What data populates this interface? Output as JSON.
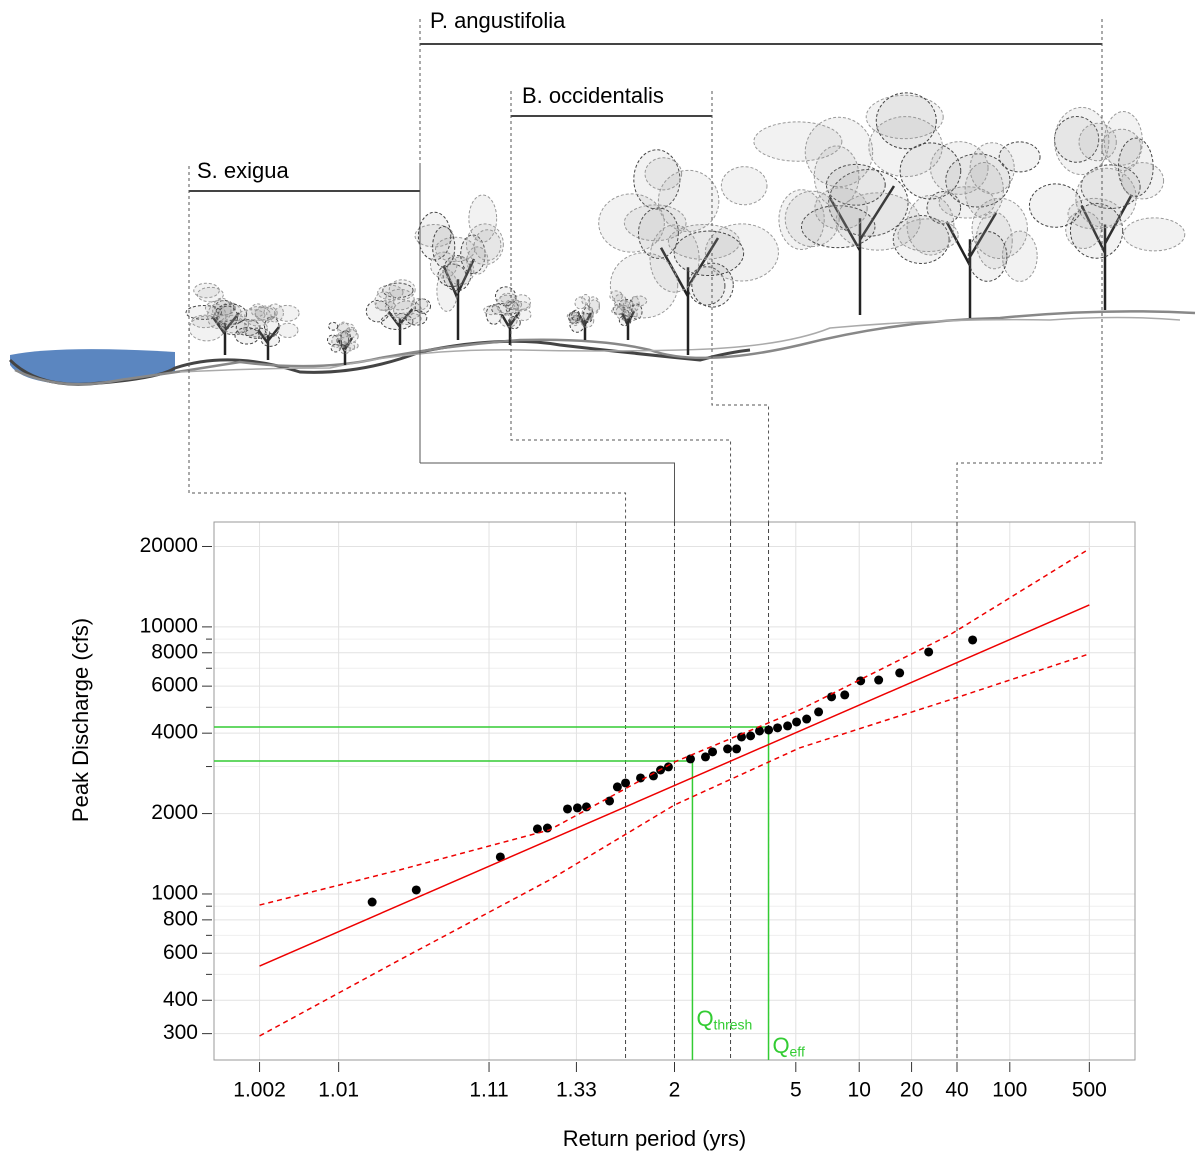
{
  "chart_data": {
    "type": "scatter",
    "xlabel": "Return period (yrs)",
    "ylabel": "Peak Discharge (cfs)",
    "xscale": "normal-probability",
    "yscale": "log",
    "xlim": [
      1.0007,
      1430
    ],
    "ylim": [
      239,
      24700
    ],
    "xticks": [
      1.002,
      1.01,
      1.11,
      1.33,
      2,
      5,
      10,
      20,
      40,
      100,
      500
    ],
    "yticks": [
      300,
      400,
      600,
      800,
      1000,
      2000,
      4000,
      6000,
      8000,
      10000,
      20000
    ],
    "yminor": [
      500,
      700,
      900,
      3000,
      5000,
      7000,
      9000
    ],
    "grid": true,
    "series": [
      {
        "type": "scatter",
        "color": "#000000",
        "x": [
          1.0183,
          1.038,
          1.128,
          1.206,
          1.233,
          1.297,
          1.334,
          1.371,
          1.484,
          1.529,
          1.58,
          1.686,
          1.792,
          1.857,
          1.935,
          2.194,
          2.41,
          2.526,
          2.806,
          3.0,
          3.115,
          3.347,
          3.602,
          3.893,
          4.214,
          4.623,
          5.038,
          5.568,
          6.3,
          7.25,
          8.42,
          10.18,
          12.77,
          16.92,
          25.7,
          51.8
        ],
        "values": [
          933,
          1035,
          1376,
          1752,
          1766,
          2081,
          2100,
          2118,
          2230,
          2517,
          2604,
          2719,
          2767,
          2912,
          2990,
          3204,
          3259,
          3405,
          3492,
          3492,
          3871,
          3908,
          4077,
          4113,
          4188,
          4259,
          4406,
          4519,
          4805,
          5470,
          5562,
          6279,
          6325,
          6724,
          8055,
          8933
        ]
      },
      {
        "type": "line",
        "color": "#ee0000",
        "dashed": false,
        "x": [
          1.002,
          500
        ],
        "values": [
          537,
          12080
        ]
      },
      {
        "type": "line",
        "color": "#ee0000",
        "dashed": true,
        "x": [
          1.002,
          1.029,
          1.239,
          2,
          5.19,
          35.6,
          500
        ],
        "values": [
          909,
          1230,
          1737,
          3120,
          4887,
          9333,
          19600
        ]
      },
      {
        "type": "line",
        "color": "#ee0000",
        "dashed": true,
        "x": [
          1.002,
          1.029,
          1.239,
          2,
          5.19,
          35.6,
          500
        ],
        "values": [
          294,
          566,
          1128,
          2154,
          3523,
          5330,
          7925
        ]
      }
    ],
    "thresholds": [
      {
        "label": "Q",
        "subscript": "thresh",
        "x": 2.22,
        "y": 3148
      },
      {
        "label": "Q",
        "subscript": "eff",
        "x": 3.89,
        "y": 4220
      }
    ],
    "threshold_color": "#33cc33",
    "zones": [
      {
        "name": "S. exigua",
        "range": [
          1.58,
          2
        ]
      },
      {
        "name": "P. angustifolia",
        "range": [
          2,
          40
        ]
      },
      {
        "name": "B. occidentalis",
        "range": [
          2.868,
          3.89
        ]
      }
    ]
  }
}
